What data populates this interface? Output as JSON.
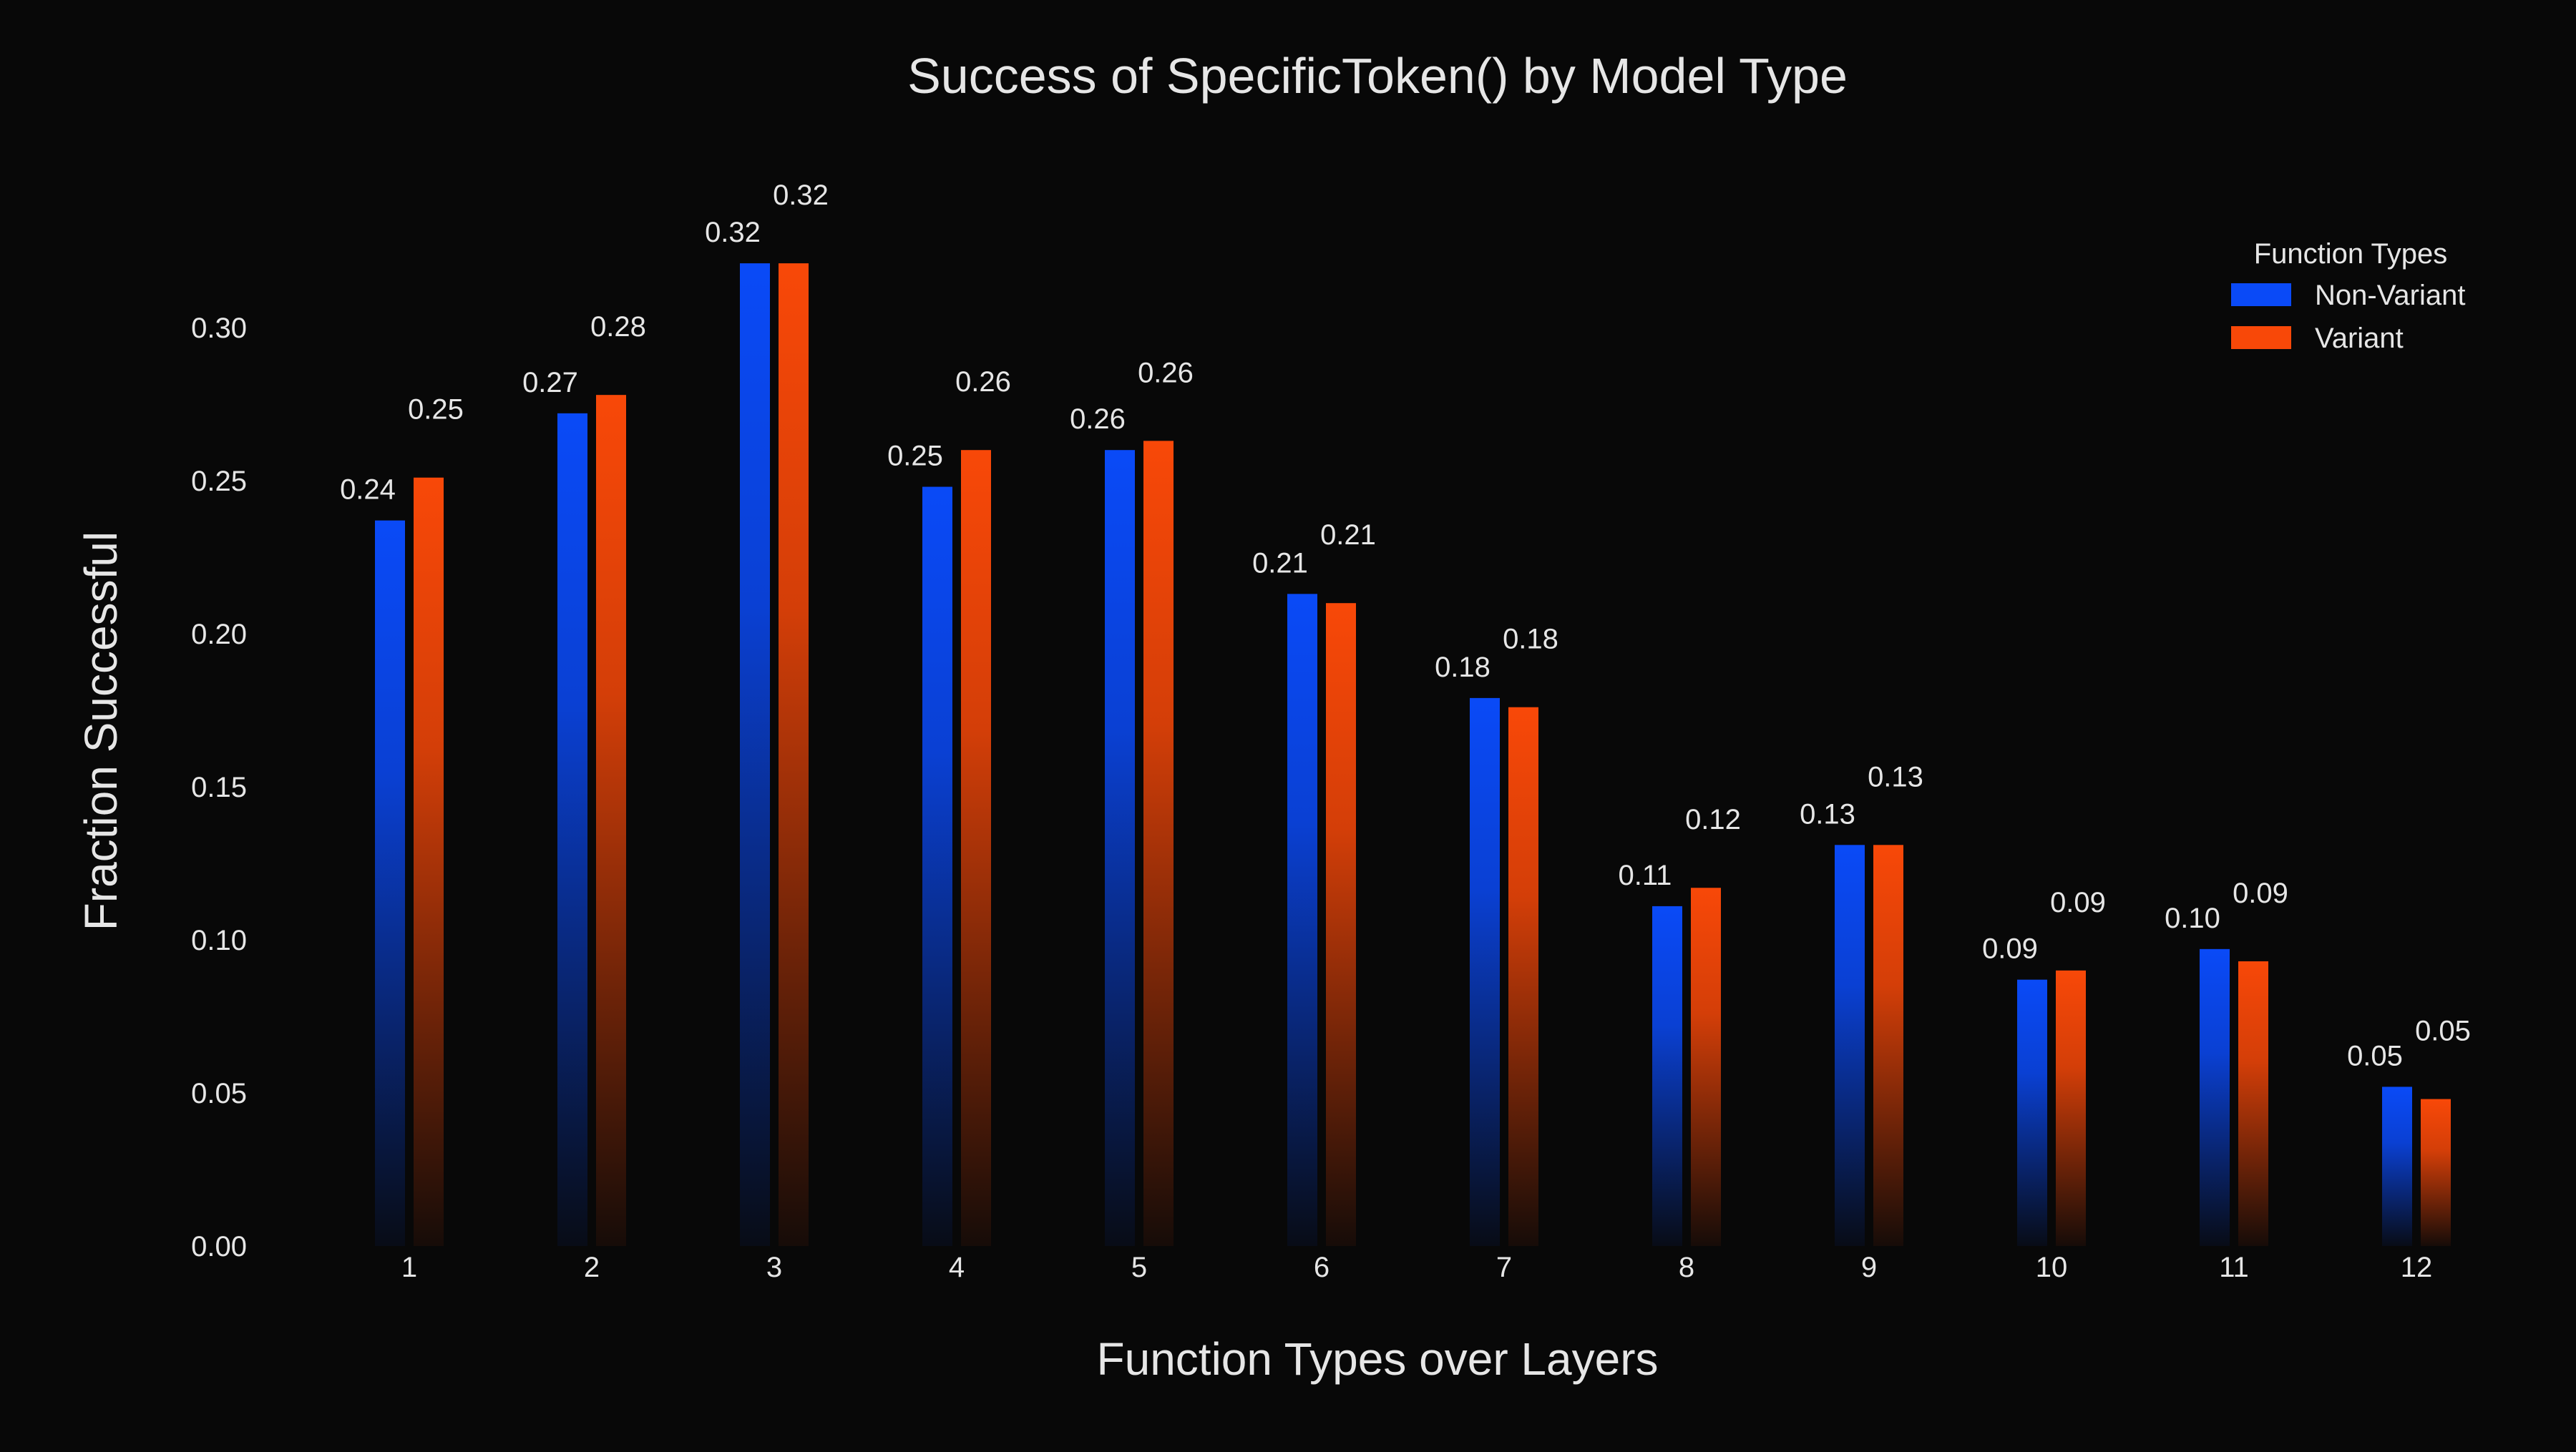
{
  "chart_data": {
    "type": "bar",
    "title": "Success of SpecificToken() by Model Type",
    "xlabel": "Function Types over Layers",
    "ylabel": "Fraction Successful",
    "categories": [
      "1",
      "2",
      "3",
      "4",
      "5",
      "6",
      "7",
      "8",
      "9",
      "10",
      "11",
      "12"
    ],
    "series": [
      {
        "name": "Non-Variant",
        "color": "#0a4af7",
        "values": [
          0.237,
          0.272,
          0.321,
          0.248,
          0.26,
          0.213,
          0.179,
          0.111,
          0.131,
          0.087,
          0.097,
          0.052
        ],
        "labels": [
          "0.24",
          "0.27",
          "0.32",
          "0.25",
          "0.26",
          "0.21",
          "0.18",
          "0.11",
          "0.13",
          "0.09",
          "0.10",
          "0.05"
        ]
      },
      {
        "name": "Variant",
        "color": "#f84808",
        "values": [
          0.251,
          0.278,
          0.321,
          0.26,
          0.263,
          0.21,
          0.176,
          0.117,
          0.131,
          0.09,
          0.093,
          0.048
        ],
        "labels": [
          "0.25",
          "0.28",
          "0.32",
          "0.26",
          "0.26",
          "0.21",
          "0.18",
          "0.12",
          "0.13",
          "0.09",
          "0.09",
          "0.05"
        ]
      }
    ],
    "yticks": [
      "0.00",
      "0.05",
      "0.10",
      "0.15",
      "0.20",
      "0.25",
      "0.30"
    ],
    "ylim": [
      0,
      0.335
    ],
    "grid": false,
    "legend": {
      "title": "Function Types",
      "placement": "top-right"
    },
    "background": "#080808",
    "text_color": "#e6e6e6"
  }
}
